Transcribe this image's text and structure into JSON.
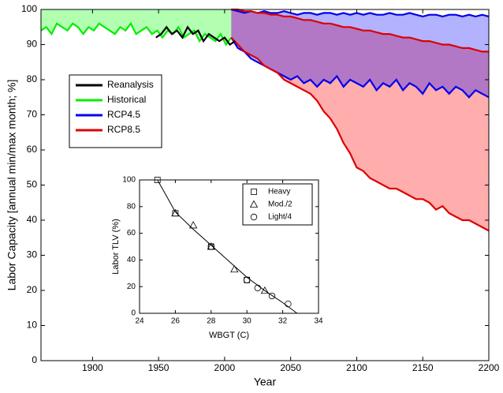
{
  "chart_data": [
    {
      "type": "band",
      "x_label": "Year",
      "y_label": "Labor Capacity [annual min/max month; %]",
      "xlim": [
        1861,
        2200
      ],
      "ylim": [
        0,
        100
      ],
      "xticks": [
        1900,
        1950,
        2000,
        2050,
        2100,
        2150,
        2200
      ],
      "yticks": [
        0,
        10,
        20,
        30,
        40,
        50,
        60,
        70,
        80,
        90,
        100
      ],
      "legend": "upper-left",
      "series": [
        {
          "name": "Reanalysis",
          "color": "#000000",
          "x": [
            1948,
            1952,
            1956,
            1960,
            1964,
            1968,
            1972,
            1976,
            1980,
            1984,
            1988,
            1992,
            1996,
            2000,
            2004,
            2008
          ],
          "values": [
            92,
            93,
            95,
            93,
            94,
            92,
            95,
            93,
            94,
            91,
            93,
            92,
            91,
            92,
            90,
            91
          ]
        },
        {
          "name": "Historical",
          "color": "#00ee00",
          "x": [
            1861,
            1865,
            1869,
            1873,
            1877,
            1881,
            1885,
            1889,
            1893,
            1897,
            1901,
            1905,
            1909,
            1913,
            1917,
            1921,
            1925,
            1929,
            1933,
            1937,
            1941,
            1945,
            1949,
            1953,
            1957,
            1961,
            1965,
            1969,
            1973,
            1977,
            1981,
            1985,
            1989,
            1993,
            1997,
            2001,
            2005
          ],
          "values": [
            94,
            95,
            93,
            96,
            95,
            94,
            96,
            95,
            93,
            95,
            94,
            96,
            95,
            94,
            93,
            95,
            94,
            96,
            93,
            94,
            95,
            93,
            94,
            92,
            94,
            93,
            95,
            92,
            93,
            94,
            91,
            93,
            92,
            91,
            93,
            90,
            92
          ],
          "max": [
            100,
            100,
            100,
            100,
            100,
            100,
            100,
            100,
            100,
            100,
            100,
            100,
            100,
            100,
            100,
            100,
            100,
            100,
            100,
            100,
            100,
            100,
            100,
            100,
            100,
            100,
            100,
            100,
            100,
            100,
            100,
            100,
            100,
            100,
            100,
            100,
            100
          ]
        },
        {
          "name": "RCP4.5",
          "color": "#0000ee",
          "x": [
            2005,
            2010,
            2015,
            2020,
            2025,
            2030,
            2035,
            2040,
            2045,
            2050,
            2055,
            2060,
            2065,
            2070,
            2075,
            2080,
            2085,
            2090,
            2095,
            2100,
            2105,
            2110,
            2115,
            2120,
            2125,
            2130,
            2135,
            2140,
            2145,
            2150,
            2155,
            2160,
            2165,
            2170,
            2175,
            2180,
            2185,
            2190,
            2195,
            2200
          ],
          "values": [
            92,
            89,
            88,
            86,
            85,
            84,
            83,
            82,
            81,
            80,
            81,
            79,
            80,
            78,
            80,
            79,
            81,
            78,
            80,
            79,
            78,
            80,
            77,
            79,
            78,
            80,
            77,
            79,
            78,
            76,
            79,
            77,
            78,
            76,
            78,
            77,
            75,
            77,
            76,
            75
          ],
          "max": [
            100,
            99.5,
            99,
            99.5,
            99,
            99.5,
            99,
            99,
            99.5,
            99,
            98.5,
            99,
            99,
            98.5,
            99,
            99,
            98.5,
            99,
            98.5,
            99,
            98.5,
            99,
            98.5,
            98.5,
            99,
            98.5,
            98.5,
            99,
            98.5,
            98,
            98.5,
            98.5,
            98,
            98.5,
            98.5,
            98,
            98.5,
            98,
            98.5,
            98
          ]
        },
        {
          "name": "RCP8.5",
          "color": "#dd0000",
          "x": [
            2005,
            2010,
            2015,
            2020,
            2025,
            2030,
            2035,
            2040,
            2045,
            2050,
            2055,
            2060,
            2065,
            2070,
            2075,
            2080,
            2085,
            2090,
            2095,
            2100,
            2105,
            2110,
            2115,
            2120,
            2125,
            2130,
            2135,
            2140,
            2145,
            2150,
            2155,
            2160,
            2165,
            2170,
            2175,
            2180,
            2185,
            2190,
            2195,
            2200
          ],
          "values": [
            92,
            90,
            88,
            87,
            86,
            84,
            83,
            82,
            80,
            79,
            78,
            77,
            76,
            74,
            71,
            69,
            66,
            62,
            59,
            55,
            54,
            52,
            51,
            50,
            49,
            49,
            48,
            47,
            46,
            46,
            45,
            43,
            44,
            42,
            41,
            40,
            40,
            39,
            38,
            37
          ],
          "max": [
            100,
            100,
            99.5,
            99.5,
            99,
            99,
            98.5,
            98.5,
            98,
            98,
            97.5,
            97,
            97,
            96.5,
            96,
            96,
            95.5,
            95,
            95,
            94.5,
            94,
            94,
            93.5,
            93,
            93,
            92.5,
            92,
            92,
            91.5,
            91,
            91,
            90.5,
            90,
            90,
            89.5,
            89,
            89,
            88.5,
            88,
            88
          ]
        }
      ]
    },
    {
      "type": "scatter",
      "x_label": "WBGT (C)",
      "y_label": "Labor TLV (%)",
      "xlim": [
        24,
        34
      ],
      "ylim": [
        0,
        100
      ],
      "xticks": [
        24,
        26,
        28,
        30,
        32,
        34
      ],
      "yticks": [
        0,
        20,
        40,
        60,
        80,
        100
      ],
      "legend": "upper-right",
      "series": [
        {
          "name": "Heavy",
          "marker": "square",
          "x": [
            25,
            26,
            28,
            30
          ],
          "values": [
            100,
            75,
            50,
            25
          ]
        },
        {
          "name": "Mod./2",
          "marker": "triangle",
          "x": [
            26,
            27,
            28,
            29.3,
            31
          ],
          "values": [
            75,
            66,
            50,
            33,
            17
          ]
        },
        {
          "name": "Light/4",
          "marker": "circle",
          "x": [
            28,
            30,
            30.6,
            31.4,
            32.3
          ],
          "values": [
            50,
            25,
            19,
            13,
            7
          ]
        }
      ],
      "curve": {
        "x": [
          25,
          25.5,
          26,
          27,
          28,
          29,
          30,
          31,
          32,
          32.8
        ],
        "values": [
          100,
          88,
          76,
          63,
          51,
          39,
          27,
          17,
          8,
          0
        ]
      }
    }
  ]
}
